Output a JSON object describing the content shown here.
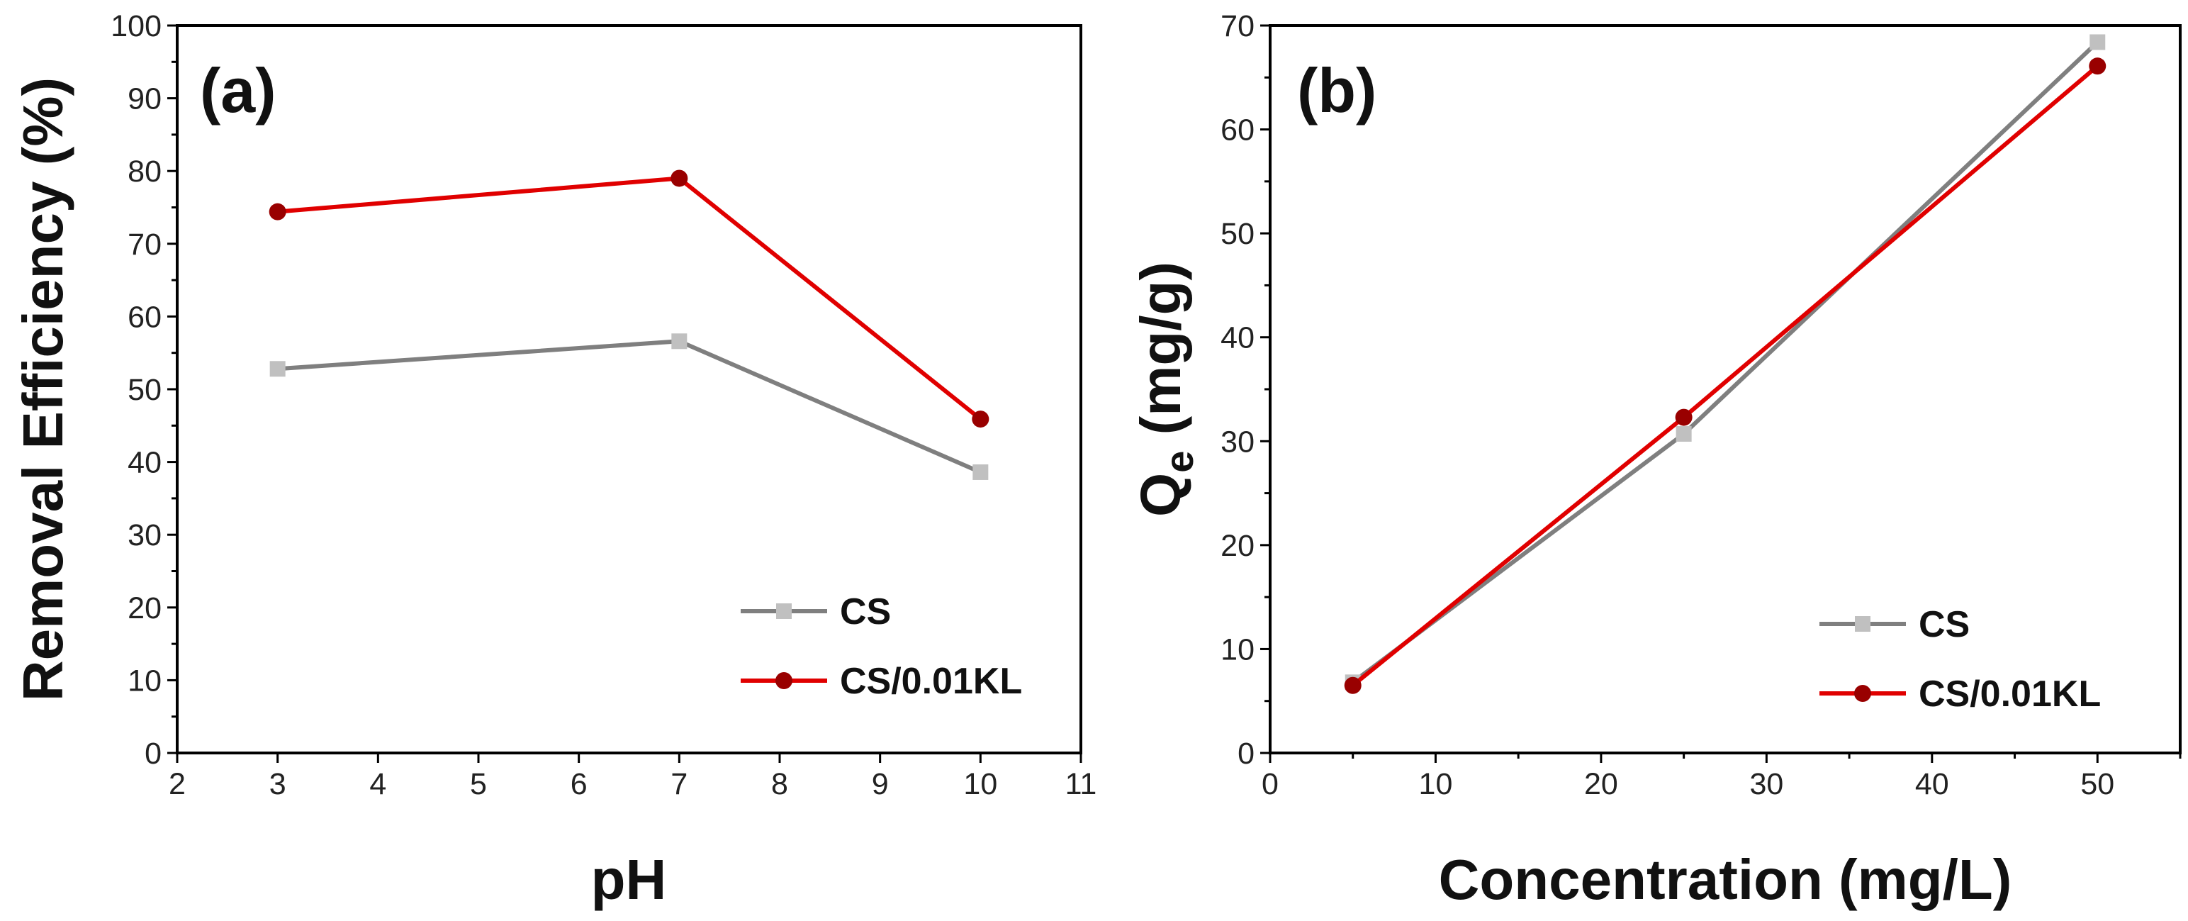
{
  "colors": {
    "cs_line": "#7f7f7f",
    "cs_marker": "#c0c0c0",
    "kl_line": "#e00000",
    "kl_marker": "#990000"
  },
  "chart_data": [
    {
      "type": "line",
      "panel_label": "(a)",
      "xlabel": "pH",
      "ylabel": "Removal Efficiency (%)",
      "xlim": [
        2,
        11
      ],
      "ylim": [
        0,
        100
      ],
      "xticks": [
        2,
        3,
        4,
        5,
        6,
        7,
        8,
        9,
        10,
        11
      ],
      "yticks": [
        0,
        10,
        20,
        30,
        40,
        50,
        60,
        70,
        80,
        90,
        100
      ],
      "legend_position": "bottom-right",
      "series": [
        {
          "name": "CS",
          "x": [
            3,
            7,
            10
          ],
          "y": [
            52.8,
            56.6,
            38.6
          ],
          "marker": "square"
        },
        {
          "name": "CS/0.01KL",
          "x": [
            3,
            7,
            10
          ],
          "y": [
            74.4,
            79.0,
            45.9
          ],
          "marker": "circle"
        }
      ]
    },
    {
      "type": "line",
      "panel_label": "(b)",
      "xlabel": "Concentration (mg/L)",
      "ylabel_main": "Q",
      "ylabel_sub": "e",
      "ylabel_rest": " (mg/g)",
      "xlim": [
        0,
        55
      ],
      "ylim": [
        0,
        70
      ],
      "xticks": [
        0,
        10,
        20,
        30,
        40,
        50
      ],
      "yticks": [
        0,
        10,
        20,
        30,
        40,
        50,
        60,
        70
      ],
      "legend_position": "bottom-right",
      "series": [
        {
          "name": "CS",
          "x": [
            5,
            25,
            50
          ],
          "y": [
            6.8,
            30.7,
            68.4
          ],
          "marker": "square"
        },
        {
          "name": "CS/0.01KL",
          "x": [
            5,
            25,
            50
          ],
          "y": [
            6.5,
            32.3,
            66.1
          ],
          "marker": "circle"
        }
      ]
    }
  ]
}
